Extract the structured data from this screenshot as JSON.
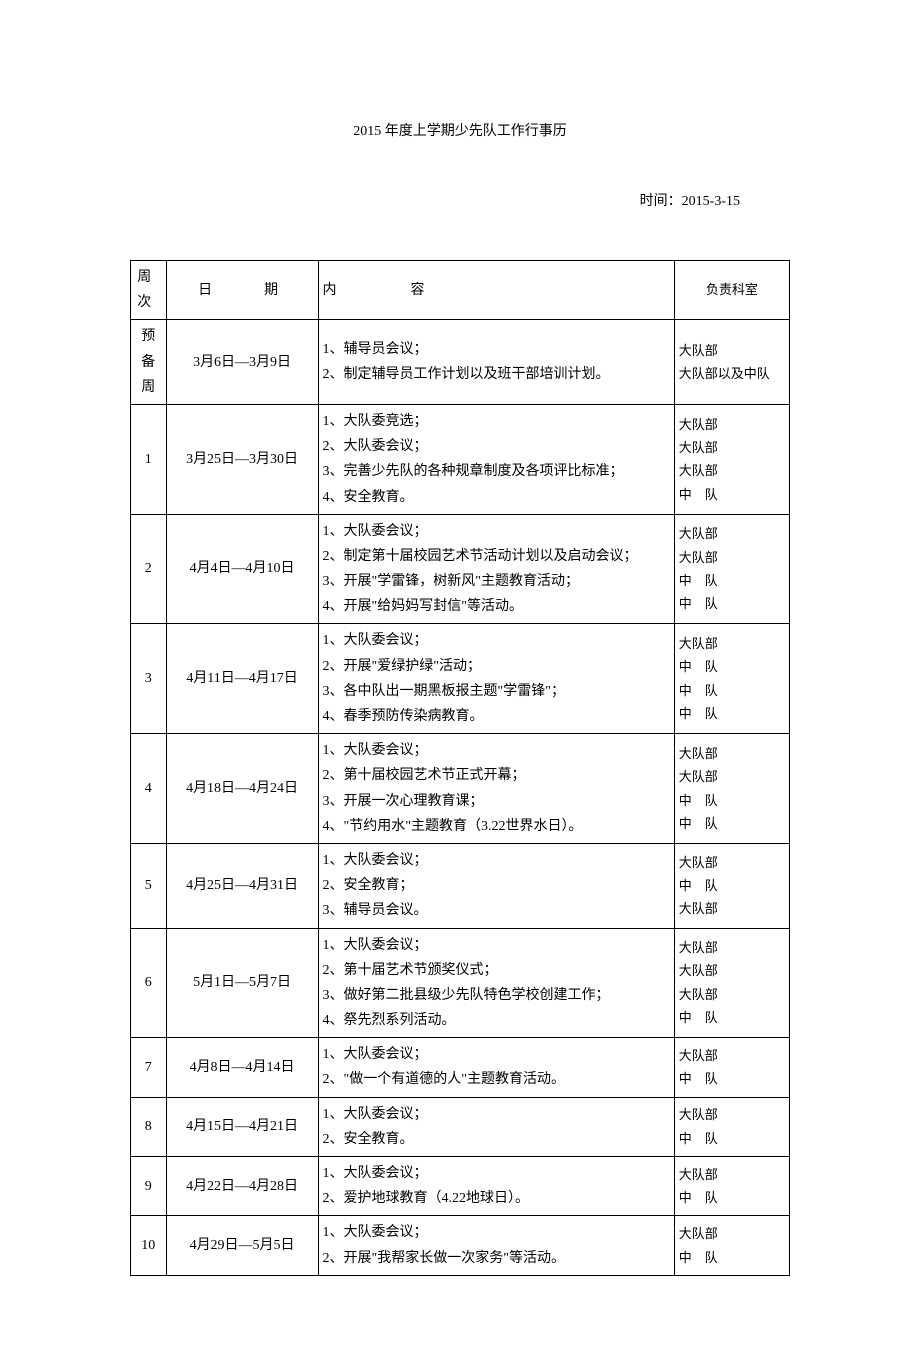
{
  "document": {
    "title": "2015 年度上学期少先队工作行事历",
    "timestamp": "时间：2015-3-15",
    "headers": {
      "week": "周次",
      "date": "日　　期",
      "content": "内　　　容",
      "dept": "负责科室"
    },
    "rows": [
      {
        "week": "预备周",
        "date": "3月6日—3月9日",
        "content": "1、辅导员会议；\n2、制定辅导员工作计划以及班干部培训计划。",
        "dept": "大队部\n大队部以及中队"
      },
      {
        "week": "1",
        "date": "3月25日—3月30日",
        "content": "1、大队委竞选；\n2、大队委会议；\n3、完善少先队的各种规章制度及各项评比标准；\n4、安全教育。",
        "dept": "大队部\n大队部\n大队部\n中　队"
      },
      {
        "week": "2",
        "date": "4月4日—4月10日",
        "content": "1、大队委会议；\n2、制定第十届校园艺术节活动计划以及启动会议；\n3、开展\"学雷锋，树新风\"主题教育活动；\n4、开展\"给妈妈写封信\"等活动。",
        "dept": "大队部\n大队部\n中　队\n中　队"
      },
      {
        "week": "3",
        "date": "4月11日—4月17日",
        "content": "1、大队委会议；\n2、开展\"爱绿护绿\"活动；\n3、各中队出一期黑板报主题\"学雷锋\"；\n4、春季预防传染病教育。",
        "dept": "大队部\n中　队\n中　队\n中　队"
      },
      {
        "week": "4",
        "date": "4月18日—4月24日",
        "content": "1、大队委会议；\n2、第十届校园艺术节正式开幕；\n3、开展一次心理教育课；\n4、\"节约用水\"主题教育（3.22世界水日）。",
        "dept": "大队部\n大队部\n中　队\n中　队"
      },
      {
        "week": "5",
        "date": "4月25日—4月31日",
        "content": "1、大队委会议；\n2、安全教育；\n3、辅导员会议。",
        "dept": "大队部\n中　队\n大队部"
      },
      {
        "week": "6",
        "date": "5月1日—5月7日",
        "content": "1、大队委会议；\n2、第十届艺术节颁奖仪式；\n3、做好第二批县级少先队特色学校创建工作；\n4、祭先烈系列活动。",
        "dept": "大队部\n大队部\n大队部\n中　队"
      },
      {
        "week": "7",
        "date": "4月8日—4月14日",
        "content": "1、大队委会议；\n2、\"做一个有道德的人\"主题教育活动。",
        "dept": "大队部\n中　队"
      },
      {
        "week": "8",
        "date": "4月15日—4月21日",
        "content": "1、大队委会议；\n2、安全教育。",
        "dept": "大队部\n中　队"
      },
      {
        "week": "9",
        "date": "4月22日—4月28日",
        "content": "1、大队委会议；\n2、爱护地球教育（4.22地球日）。",
        "dept": "大队部\n中　队"
      },
      {
        "week": "10",
        "date": "4月29日—5月5日",
        "content": "1、大队委会议；\n2、开展\"我帮家长做一次家务\"等活动。",
        "dept": "大队部\n中　队"
      }
    ]
  }
}
